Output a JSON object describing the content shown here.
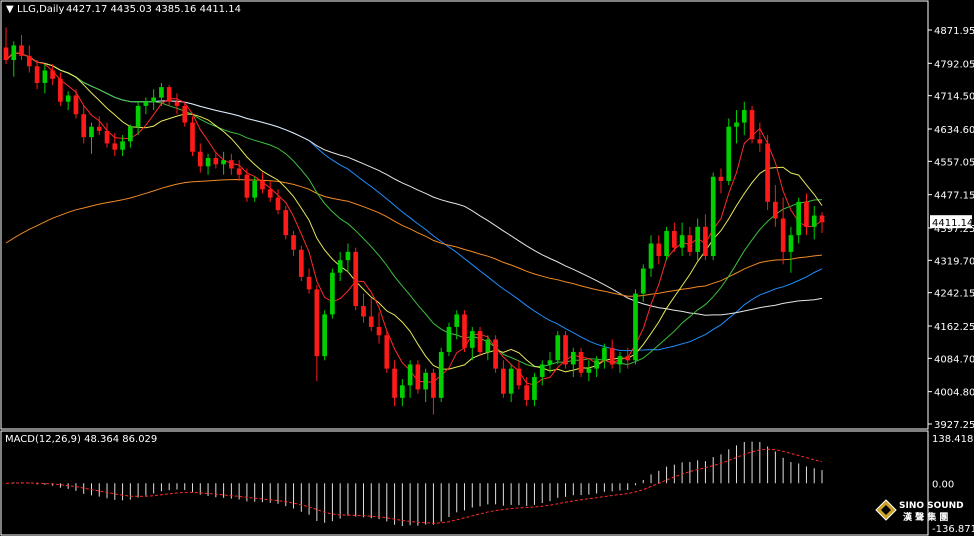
{
  "chart_data": {
    "type": "candlestick",
    "symbol": "LLG",
    "timeframe": "Daily",
    "header_title": "LLG,Daily",
    "header_ohlc": "4427.17 4435.03 4385.16 4411.14",
    "current_price_label": "4411.14",
    "price_axis_ticks": [
      "4871.95",
      "4792.05",
      "4714.50",
      "4634.60",
      "4557.05",
      "4477.15",
      "4397.25",
      "4319.70",
      "4242.15",
      "4162.25",
      "4084.70",
      "4004.80",
      "3927.25"
    ],
    "ylim": [
      3927.25,
      4871.95
    ],
    "candles": [
      {
        "o": 4830,
        "h": 4878,
        "l": 4790,
        "c": 4800
      },
      {
        "o": 4800,
        "h": 4845,
        "l": 4760,
        "c": 4835
      },
      {
        "o": 4835,
        "h": 4860,
        "l": 4800,
        "c": 4810
      },
      {
        "o": 4810,
        "h": 4835,
        "l": 4770,
        "c": 4785
      },
      {
        "o": 4785,
        "h": 4800,
        "l": 4730,
        "c": 4745
      },
      {
        "o": 4745,
        "h": 4790,
        "l": 4720,
        "c": 4775
      },
      {
        "o": 4775,
        "h": 4790,
        "l": 4740,
        "c": 4755
      },
      {
        "o": 4755,
        "h": 4770,
        "l": 4690,
        "c": 4700
      },
      {
        "o": 4700,
        "h": 4725,
        "l": 4680,
        "c": 4715
      },
      {
        "o": 4715,
        "h": 4730,
        "l": 4660,
        "c": 4670
      },
      {
        "o": 4670,
        "h": 4690,
        "l": 4600,
        "c": 4615
      },
      {
        "o": 4615,
        "h": 4650,
        "l": 4575,
        "c": 4640
      },
      {
        "o": 4640,
        "h": 4665,
        "l": 4620,
        "c": 4630
      },
      {
        "o": 4630,
        "h": 4650,
        "l": 4590,
        "c": 4600
      },
      {
        "o": 4600,
        "h": 4625,
        "l": 4570,
        "c": 4585
      },
      {
        "o": 4585,
        "h": 4620,
        "l": 4570,
        "c": 4605
      },
      {
        "o": 4605,
        "h": 4645,
        "l": 4590,
        "c": 4640
      },
      {
        "o": 4640,
        "h": 4700,
        "l": 4620,
        "c": 4690
      },
      {
        "o": 4690,
        "h": 4710,
        "l": 4670,
        "c": 4700
      },
      {
        "o": 4700,
        "h": 4730,
        "l": 4680,
        "c": 4710
      },
      {
        "o": 4710,
        "h": 4745,
        "l": 4690,
        "c": 4735
      },
      {
        "o": 4735,
        "h": 4740,
        "l": 4690,
        "c": 4700
      },
      {
        "o": 4700,
        "h": 4720,
        "l": 4670,
        "c": 4690
      },
      {
        "o": 4690,
        "h": 4700,
        "l": 4640,
        "c": 4650
      },
      {
        "o": 4650,
        "h": 4665,
        "l": 4570,
        "c": 4580
      },
      {
        "o": 4580,
        "h": 4600,
        "l": 4530,
        "c": 4545
      },
      {
        "o": 4545,
        "h": 4575,
        "l": 4525,
        "c": 4565
      },
      {
        "o": 4565,
        "h": 4580,
        "l": 4540,
        "c": 4550
      },
      {
        "o": 4550,
        "h": 4580,
        "l": 4525,
        "c": 4560
      },
      {
        "o": 4560,
        "h": 4575,
        "l": 4525,
        "c": 4540
      },
      {
        "o": 4540,
        "h": 4560,
        "l": 4510,
        "c": 4525
      },
      {
        "o": 4525,
        "h": 4540,
        "l": 4460,
        "c": 4470
      },
      {
        "o": 4470,
        "h": 4520,
        "l": 4460,
        "c": 4510
      },
      {
        "o": 4510,
        "h": 4530,
        "l": 4480,
        "c": 4490
      },
      {
        "o": 4490,
        "h": 4510,
        "l": 4460,
        "c": 4470
      },
      {
        "o": 4470,
        "h": 4490,
        "l": 4430,
        "c": 4440
      },
      {
        "o": 4440,
        "h": 4450,
        "l": 4370,
        "c": 4380
      },
      {
        "o": 4380,
        "h": 4390,
        "l": 4330,
        "c": 4345
      },
      {
        "o": 4345,
        "h": 4355,
        "l": 4270,
        "c": 4280
      },
      {
        "o": 4280,
        "h": 4300,
        "l": 4240,
        "c": 4250
      },
      {
        "o": 4250,
        "h": 4260,
        "l": 4030,
        "c": 4090
      },
      {
        "o": 4090,
        "h": 4200,
        "l": 4080,
        "c": 4190
      },
      {
        "o": 4190,
        "h": 4300,
        "l": 4180,
        "c": 4290
      },
      {
        "o": 4290,
        "h": 4340,
        "l": 4270,
        "c": 4320
      },
      {
        "o": 4320,
        "h": 4360,
        "l": 4290,
        "c": 4340
      },
      {
        "o": 4340,
        "h": 4350,
        "l": 4200,
        "c": 4210
      },
      {
        "o": 4210,
        "h": 4240,
        "l": 4170,
        "c": 4185
      },
      {
        "o": 4185,
        "h": 4230,
        "l": 4150,
        "c": 4160
      },
      {
        "o": 4160,
        "h": 4195,
        "l": 4120,
        "c": 4140
      },
      {
        "o": 4140,
        "h": 4150,
        "l": 4050,
        "c": 4060
      },
      {
        "o": 4060,
        "h": 4080,
        "l": 3970,
        "c": 3990
      },
      {
        "o": 3990,
        "h": 4035,
        "l": 3970,
        "c": 4020
      },
      {
        "o": 4020,
        "h": 4080,
        "l": 3990,
        "c": 4070
      },
      {
        "o": 4070,
        "h": 4080,
        "l": 4000,
        "c": 4010
      },
      {
        "o": 4010,
        "h": 4060,
        "l": 3980,
        "c": 4050
      },
      {
        "o": 4050,
        "h": 4060,
        "l": 3950,
        "c": 3990
      },
      {
        "o": 3990,
        "h": 4110,
        "l": 3980,
        "c": 4100
      },
      {
        "o": 4100,
        "h": 4170,
        "l": 4090,
        "c": 4160
      },
      {
        "o": 4160,
        "h": 4200,
        "l": 4130,
        "c": 4190
      },
      {
        "o": 4190,
        "h": 4200,
        "l": 4100,
        "c": 4110
      },
      {
        "o": 4110,
        "h": 4160,
        "l": 4080,
        "c": 4150
      },
      {
        "o": 4150,
        "h": 4160,
        "l": 4090,
        "c": 4100
      },
      {
        "o": 4100,
        "h": 4140,
        "l": 4080,
        "c": 4130
      },
      {
        "o": 4130,
        "h": 4140,
        "l": 4050,
        "c": 4060
      },
      {
        "o": 4060,
        "h": 4080,
        "l": 3990,
        "c": 4000
      },
      {
        "o": 4000,
        "h": 4070,
        "l": 3980,
        "c": 4060
      },
      {
        "o": 4060,
        "h": 4080,
        "l": 4010,
        "c": 4020
      },
      {
        "o": 4020,
        "h": 4040,
        "l": 3970,
        "c": 3985
      },
      {
        "o": 3985,
        "h": 4050,
        "l": 3970,
        "c": 4040
      },
      {
        "o": 4040,
        "h": 4080,
        "l": 4020,
        "c": 4070
      },
      {
        "o": 4070,
        "h": 4100,
        "l": 4050,
        "c": 4080
      },
      {
        "o": 4080,
        "h": 4150,
        "l": 4070,
        "c": 4140
      },
      {
        "o": 4140,
        "h": 4150,
        "l": 4060,
        "c": 4070
      },
      {
        "o": 4070,
        "h": 4110,
        "l": 4040,
        "c": 4100
      },
      {
        "o": 4100,
        "h": 4110,
        "l": 4040,
        "c": 4050
      },
      {
        "o": 4050,
        "h": 4080,
        "l": 4030,
        "c": 4060
      },
      {
        "o": 4060,
        "h": 4090,
        "l": 4040,
        "c": 4080
      },
      {
        "o": 4080,
        "h": 4120,
        "l": 4060,
        "c": 4110
      },
      {
        "o": 4110,
        "h": 4130,
        "l": 4060,
        "c": 4070
      },
      {
        "o": 4070,
        "h": 4100,
        "l": 4050,
        "c": 4090
      },
      {
        "o": 4090,
        "h": 4110,
        "l": 4060,
        "c": 4080
      },
      {
        "o": 4080,
        "h": 4250,
        "l": 4070,
        "c": 4240
      },
      {
        "o": 4240,
        "h": 4310,
        "l": 4220,
        "c": 4300
      },
      {
        "o": 4300,
        "h": 4380,
        "l": 4280,
        "c": 4360
      },
      {
        "o": 4360,
        "h": 4380,
        "l": 4310,
        "c": 4330
      },
      {
        "o": 4330,
        "h": 4400,
        "l": 4320,
        "c": 4390
      },
      {
        "o": 4390,
        "h": 4410,
        "l": 4340,
        "c": 4350
      },
      {
        "o": 4350,
        "h": 4410,
        "l": 4330,
        "c": 4380
      },
      {
        "o": 4380,
        "h": 4400,
        "l": 4330,
        "c": 4340
      },
      {
        "o": 4340,
        "h": 4420,
        "l": 4320,
        "c": 4400
      },
      {
        "o": 4400,
        "h": 4430,
        "l": 4320,
        "c": 4330
      },
      {
        "o": 4330,
        "h": 4530,
        "l": 4320,
        "c": 4520
      },
      {
        "o": 4520,
        "h": 4540,
        "l": 4480,
        "c": 4510
      },
      {
        "o": 4510,
        "h": 4660,
        "l": 4500,
        "c": 4640
      },
      {
        "o": 4640,
        "h": 4680,
        "l": 4600,
        "c": 4650
      },
      {
        "o": 4650,
        "h": 4700,
        "l": 4620,
        "c": 4680
      },
      {
        "o": 4680,
        "h": 4690,
        "l": 4600,
        "c": 4610
      },
      {
        "o": 4610,
        "h": 4650,
        "l": 4580,
        "c": 4600
      },
      {
        "o": 4600,
        "h": 4620,
        "l": 4440,
        "c": 4460
      },
      {
        "o": 4460,
        "h": 4500,
        "l": 4400,
        "c": 4420
      },
      {
        "o": 4420,
        "h": 4470,
        "l": 4310,
        "c": 4340
      },
      {
        "o": 4340,
        "h": 4400,
        "l": 4290,
        "c": 4380
      },
      {
        "o": 4380,
        "h": 4470,
        "l": 4360,
        "c": 4460
      },
      {
        "o": 4460,
        "h": 4480,
        "l": 4380,
        "c": 4400
      },
      {
        "o": 4400,
        "h": 4450,
        "l": 4370,
        "c": 4427
      },
      {
        "o": 4427.17,
        "h": 4435.03,
        "l": 4385.16,
        "c": 4411.14
      }
    ],
    "macd": {
      "label": "MACD(12,26,9) 48.364 86.029",
      "axis_ticks": [
        "138.418",
        "0.00",
        "-136.871"
      ],
      "ylim": [
        -136.871,
        138.418
      ]
    }
  }
}
